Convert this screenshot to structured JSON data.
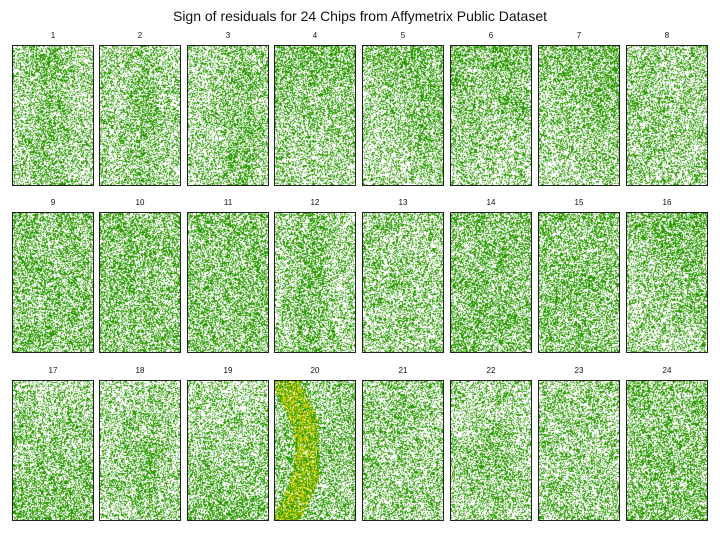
{
  "title": "Sign of residuals for 24 Chips from Affymetrix Public Dataset",
  "chart_data": {
    "type": "heatmap",
    "title": "Sign of residuals for 24 Chips from Affymetrix Public Dataset",
    "colors": {
      "positive": "#2a9a00",
      "negative": "#ffffff",
      "artifact": "#d8d000",
      "frame": "#222222"
    },
    "chips": [
      {
        "label": "1",
        "pattern": "vertical-band-left"
      },
      {
        "label": "2",
        "pattern": "vertical-band-center"
      },
      {
        "label": "3",
        "pattern": "vertical-band-right"
      },
      {
        "label": "4",
        "pattern": "top-dense"
      },
      {
        "label": "5",
        "pattern": "top-right-dense"
      },
      {
        "label": "6",
        "pattern": "top-dense"
      },
      {
        "label": "7",
        "pattern": "top-right-dense"
      },
      {
        "label": "8",
        "pattern": "uniform"
      },
      {
        "label": "9",
        "pattern": "uniform-dense"
      },
      {
        "label": "10",
        "pattern": "uniform-dense"
      },
      {
        "label": "11",
        "pattern": "uniform-dense"
      },
      {
        "label": "12",
        "pattern": "vertical-band-left"
      },
      {
        "label": "13",
        "pattern": "uniform"
      },
      {
        "label": "14",
        "pattern": "uniform-dense"
      },
      {
        "label": "15",
        "pattern": "uniform-dense"
      },
      {
        "label": "16",
        "pattern": "top-right-dense"
      },
      {
        "label": "17",
        "pattern": "bottom-dense"
      },
      {
        "label": "18",
        "pattern": "center-dense"
      },
      {
        "label": "19",
        "pattern": "bottom-dense"
      },
      {
        "label": "20",
        "pattern": "arc-artifact"
      },
      {
        "label": "21",
        "pattern": "uniform"
      },
      {
        "label": "22",
        "pattern": "center-dense"
      },
      {
        "label": "23",
        "pattern": "uniform"
      },
      {
        "label": "24",
        "pattern": "uniform-dense"
      }
    ]
  }
}
